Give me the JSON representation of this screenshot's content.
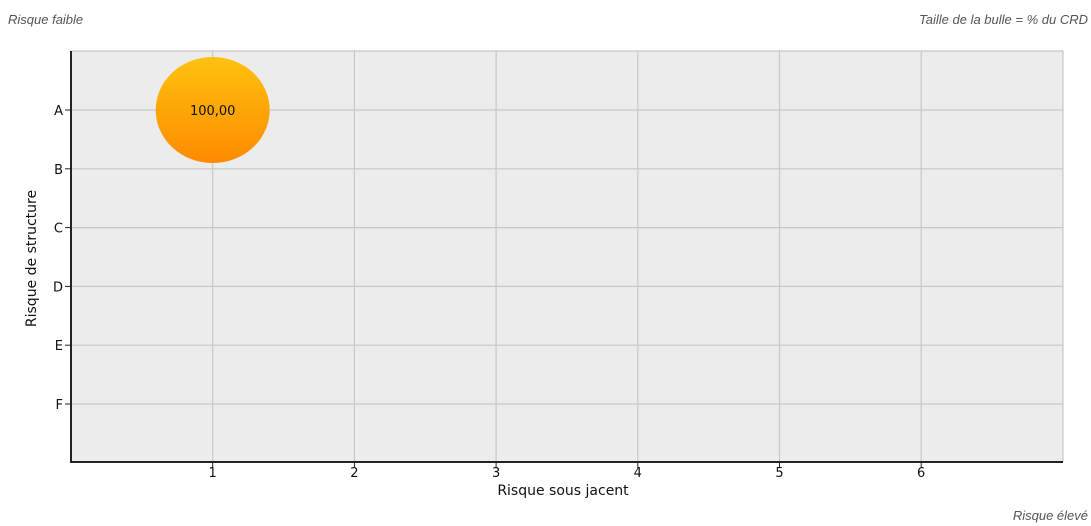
{
  "notes": {
    "top_left": "Risque faible",
    "top_right": "Taille de la bulle = % du CRD",
    "bottom_right": "Risque élevé"
  },
  "colors": {
    "plot_background": "#ececec",
    "grid": "#c8c8c8",
    "axis": "#222222",
    "bubble_top": "#ffc20e",
    "bubble_bottom": "#ff8a00"
  },
  "chart_data": {
    "type": "bubble",
    "title": "",
    "xlabel": "Risque sous jacent",
    "ylabel": "Risque de structure",
    "x_categories": [
      "1",
      "2",
      "3",
      "4",
      "5",
      "6"
    ],
    "y_categories": [
      "A",
      "B",
      "C",
      "D",
      "E",
      "F"
    ],
    "grid": true,
    "points": [
      {
        "x": "1",
        "y": "A",
        "size": 100,
        "label": "100,00"
      }
    ]
  }
}
